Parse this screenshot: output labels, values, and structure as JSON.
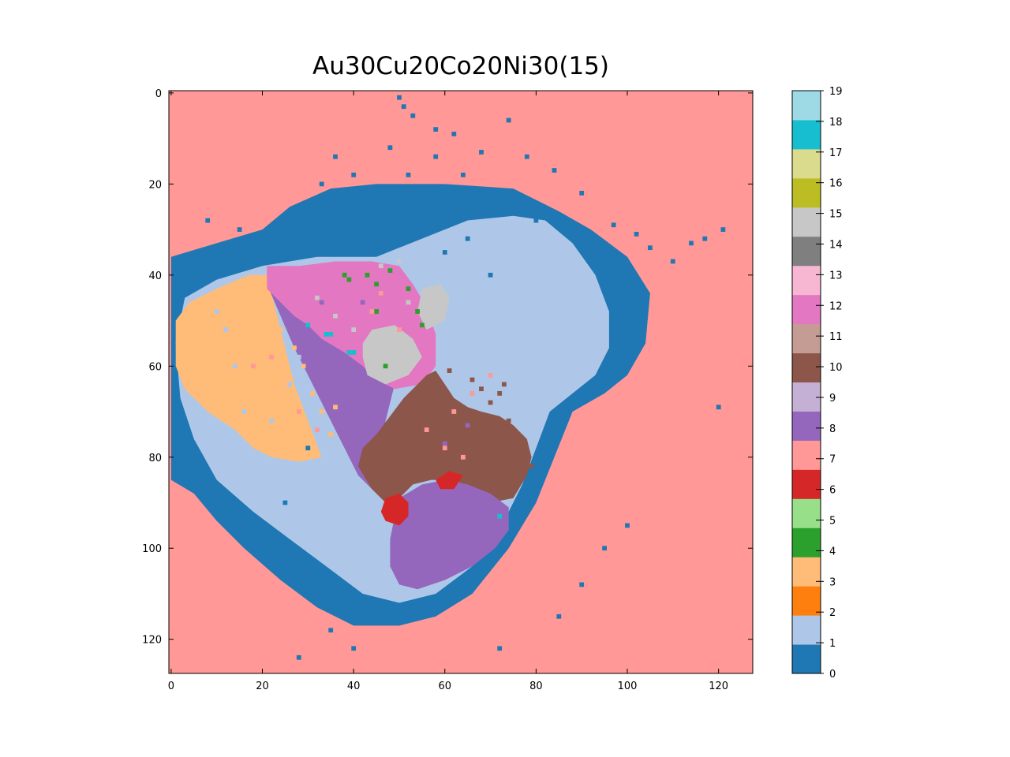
{
  "chart_data": {
    "type": "heatmap",
    "title": "Au30Cu20Co20Ni30(15)",
    "xlabel": "",
    "ylabel": "",
    "grid_size": 128,
    "xlim": [
      -0.5,
      127.5
    ],
    "ylim": [
      127.5,
      -0.5
    ],
    "x_ticks": [
      "0",
      "20",
      "40",
      "60",
      "80",
      "100",
      "120"
    ],
    "y_ticks": [
      "0",
      "20",
      "40",
      "60",
      "80",
      "100",
      "120"
    ],
    "colorbar": {
      "range": [
        0,
        19
      ],
      "ticks": [
        "0",
        "1",
        "2",
        "3",
        "4",
        "5",
        "6",
        "7",
        "8",
        "9",
        "10",
        "11",
        "12",
        "13",
        "14",
        "15",
        "16",
        "17",
        "18",
        "19"
      ],
      "colors": [
        "#1f77b4",
        "#aec7e8",
        "#ff7f0e",
        "#ffbb78",
        "#2ca02c",
        "#98df8a",
        "#d62728",
        "#ff9896",
        "#9467bd",
        "#c5b0d5",
        "#8c564b",
        "#c49c94",
        "#e377c2",
        "#f7b6d2",
        "#7f7f7f",
        "#c7c7c7",
        "#bcbd22",
        "#dbdb8d",
        "#17becf",
        "#9edae5"
      ]
    },
    "background_class": 7,
    "regions": [
      {
        "class": 0,
        "polygon": [
          [
            0,
            36
          ],
          [
            10,
            33
          ],
          [
            20,
            30
          ],
          [
            26,
            25
          ],
          [
            35,
            21
          ],
          [
            45,
            20
          ],
          [
            60,
            20
          ],
          [
            75,
            21
          ],
          [
            85,
            26
          ],
          [
            92,
            30
          ],
          [
            100,
            36
          ],
          [
            105,
            44
          ],
          [
            104,
            55
          ],
          [
            100,
            62
          ],
          [
            95,
            66
          ],
          [
            88,
            70
          ],
          [
            84,
            80
          ],
          [
            80,
            90
          ],
          [
            74,
            100
          ],
          [
            66,
            110
          ],
          [
            58,
            115
          ],
          [
            50,
            117
          ],
          [
            40,
            117
          ],
          [
            32,
            113
          ],
          [
            24,
            107
          ],
          [
            16,
            100
          ],
          [
            10,
            94
          ],
          [
            5,
            88
          ],
          [
            0,
            85
          ]
        ]
      },
      {
        "class": 1,
        "polygon": [
          [
            3,
            45
          ],
          [
            10,
            41
          ],
          [
            20,
            38
          ],
          [
            32,
            36
          ],
          [
            45,
            36
          ],
          [
            55,
            32
          ],
          [
            65,
            28
          ],
          [
            75,
            27
          ],
          [
            82,
            28
          ],
          [
            88,
            33
          ],
          [
            93,
            40
          ],
          [
            96,
            48
          ],
          [
            96,
            56
          ],
          [
            93,
            62
          ],
          [
            88,
            66
          ],
          [
            83,
            70
          ],
          [
            80,
            78
          ],
          [
            77,
            86
          ],
          [
            72,
            96
          ],
          [
            66,
            104
          ],
          [
            58,
            110
          ],
          [
            50,
            112
          ],
          [
            42,
            110
          ],
          [
            34,
            104
          ],
          [
            26,
            98
          ],
          [
            18,
            92
          ],
          [
            10,
            85
          ],
          [
            5,
            76
          ],
          [
            2,
            67
          ],
          [
            1,
            55
          ]
        ]
      },
      {
        "class": 3,
        "polygon": [
          [
            1,
            50
          ],
          [
            4,
            46
          ],
          [
            10,
            43
          ],
          [
            17,
            40
          ],
          [
            21,
            40
          ],
          [
            23,
            48
          ],
          [
            25,
            56
          ],
          [
            27,
            64
          ],
          [
            30,
            72
          ],
          [
            33,
            80
          ],
          [
            28,
            81
          ],
          [
            22,
            80
          ],
          [
            18,
            78
          ],
          [
            14,
            74
          ],
          [
            8,
            70
          ],
          [
            3,
            65
          ],
          [
            1,
            60
          ]
        ]
      },
      {
        "class": 8,
        "polygon": [
          [
            21,
            42
          ],
          [
            24,
            49
          ],
          [
            27,
            56
          ],
          [
            31,
            64
          ],
          [
            35,
            72
          ],
          [
            38,
            78
          ],
          [
            41,
            84
          ],
          [
            44,
            87
          ],
          [
            46,
            80
          ],
          [
            47,
            72
          ],
          [
            49,
            64
          ],
          [
            47,
            59
          ],
          [
            43,
            56
          ],
          [
            39,
            54
          ],
          [
            35,
            52
          ],
          [
            30,
            51
          ],
          [
            26,
            48
          ]
        ]
      },
      {
        "class": 12,
        "polygon": [
          [
            21,
            38
          ],
          [
            28,
            38
          ],
          [
            36,
            37
          ],
          [
            44,
            37
          ],
          [
            50,
            38
          ],
          [
            53,
            42
          ],
          [
            56,
            47
          ],
          [
            58,
            53
          ],
          [
            58,
            60
          ],
          [
            55,
            64
          ],
          [
            49,
            65
          ],
          [
            45,
            63
          ],
          [
            42,
            60
          ],
          [
            38,
            57
          ],
          [
            33,
            54
          ],
          [
            30,
            51
          ],
          [
            27,
            49
          ],
          [
            24,
            46
          ],
          [
            21,
            43
          ]
        ]
      },
      {
        "class": 15,
        "polygon": [
          [
            42,
            55
          ],
          [
            44,
            52
          ],
          [
            49,
            51
          ],
          [
            53,
            54
          ],
          [
            55,
            58
          ],
          [
            52,
            62
          ],
          [
            47,
            64
          ],
          [
            43,
            62
          ],
          [
            42,
            58
          ]
        ]
      },
      {
        "class": 15,
        "polygon": [
          [
            55,
            43
          ],
          [
            59,
            42
          ],
          [
            61,
            45
          ],
          [
            60,
            50
          ],
          [
            56,
            52
          ],
          [
            54,
            48
          ]
        ]
      },
      {
        "class": 10,
        "polygon": [
          [
            48,
            71
          ],
          [
            51,
            67
          ],
          [
            54,
            64
          ],
          [
            56,
            62
          ],
          [
            58,
            61
          ],
          [
            60,
            64
          ],
          [
            62,
            67
          ],
          [
            65,
            69
          ],
          [
            68,
            70
          ],
          [
            72,
            71
          ],
          [
            75,
            73
          ],
          [
            78,
            76
          ],
          [
            79,
            80
          ],
          [
            78,
            84
          ],
          [
            75,
            89
          ],
          [
            70,
            90
          ],
          [
            66,
            87
          ],
          [
            62,
            85
          ],
          [
            57,
            85
          ],
          [
            53,
            86
          ],
          [
            50,
            89
          ],
          [
            47,
            90
          ],
          [
            44,
            87
          ],
          [
            41,
            82
          ],
          [
            42,
            78
          ],
          [
            45,
            75
          ]
        ]
      },
      {
        "class": 8,
        "polygon": [
          [
            50,
            89
          ],
          [
            55,
            86
          ],
          [
            60,
            85
          ],
          [
            65,
            86
          ],
          [
            70,
            88
          ],
          [
            74,
            91
          ],
          [
            74,
            96
          ],
          [
            71,
            100
          ],
          [
            66,
            104
          ],
          [
            60,
            107
          ],
          [
            54,
            109
          ],
          [
            50,
            108
          ],
          [
            48,
            104
          ],
          [
            48,
            98
          ],
          [
            49,
            93
          ]
        ]
      },
      {
        "class": 6,
        "polygon": [
          [
            47,
            89
          ],
          [
            50,
            88
          ],
          [
            52,
            90
          ],
          [
            52,
            93
          ],
          [
            50,
            95
          ],
          [
            47,
            94
          ],
          [
            46,
            92
          ]
        ]
      },
      {
        "class": 6,
        "polygon": [
          [
            58,
            85
          ],
          [
            61,
            83
          ],
          [
            64,
            84
          ],
          [
            62,
            87
          ],
          [
            59,
            87
          ]
        ]
      }
    ],
    "speckles": [
      {
        "class": 4,
        "points": [
          [
            38,
            40
          ],
          [
            39,
            41
          ],
          [
            43,
            40
          ],
          [
            45,
            42
          ],
          [
            48,
            39
          ],
          [
            52,
            43
          ],
          [
            55,
            51
          ],
          [
            45,
            48
          ],
          [
            47,
            60
          ],
          [
            54,
            48
          ]
        ]
      },
      {
        "class": 18,
        "points": [
          [
            34,
            53
          ],
          [
            35,
            53
          ],
          [
            39,
            57
          ],
          [
            40,
            57
          ],
          [
            72,
            93
          ],
          [
            30,
            51
          ]
        ]
      },
      {
        "class": 8,
        "points": [
          [
            33,
            46
          ],
          [
            42,
            46
          ],
          [
            60,
            77
          ],
          [
            65,
            73
          ],
          [
            45,
            70
          ]
        ]
      },
      {
        "class": 0,
        "points": [
          [
            50,
            1
          ],
          [
            51,
            3
          ],
          [
            53,
            5
          ],
          [
            58,
            8
          ],
          [
            62,
            9
          ],
          [
            68,
            13
          ],
          [
            74,
            6
          ],
          [
            78,
            14
          ],
          [
            84,
            17
          ],
          [
            90,
            22
          ],
          [
            97,
            29
          ],
          [
            102,
            31
          ],
          [
            105,
            34
          ],
          [
            110,
            37
          ],
          [
            114,
            33
          ],
          [
            117,
            32
          ],
          [
            121,
            30
          ],
          [
            99,
            43
          ],
          [
            104,
            46
          ],
          [
            120,
            69
          ],
          [
            30,
            78
          ],
          [
            25,
            90
          ],
          [
            20,
            100
          ],
          [
            35,
            118
          ],
          [
            40,
            122
          ],
          [
            28,
            124
          ],
          [
            72,
            122
          ],
          [
            85,
            115
          ],
          [
            90,
            108
          ],
          [
            95,
            100
          ],
          [
            100,
            95
          ],
          [
            70,
            40
          ],
          [
            65,
            32
          ],
          [
            60,
            35
          ],
          [
            48,
            12
          ],
          [
            52,
            18
          ],
          [
            58,
            14
          ],
          [
            64,
            18
          ],
          [
            80,
            28
          ],
          [
            18,
            32
          ],
          [
            15,
            30
          ],
          [
            12,
            34
          ],
          [
            8,
            28
          ],
          [
            40,
            18
          ],
          [
            36,
            14
          ],
          [
            33,
            20
          ]
        ]
      },
      {
        "class": 1,
        "points": [
          [
            10,
            48
          ],
          [
            12,
            52
          ],
          [
            14,
            60
          ],
          [
            16,
            70
          ],
          [
            22,
            72
          ],
          [
            26,
            64
          ],
          [
            28,
            58
          ],
          [
            82,
            50
          ],
          [
            84,
            60
          ]
        ]
      },
      {
        "class": 3,
        "points": [
          [
            27,
            56
          ],
          [
            29,
            60
          ],
          [
            31,
            66
          ],
          [
            33,
            70
          ],
          [
            35,
            75
          ],
          [
            24,
            52
          ],
          [
            36,
            69
          ]
        ]
      },
      {
        "class": 7,
        "points": [
          [
            44,
            48
          ],
          [
            50,
            52
          ],
          [
            46,
            44
          ],
          [
            28,
            70
          ],
          [
            32,
            74
          ],
          [
            56,
            74
          ],
          [
            62,
            70
          ],
          [
            66,
            66
          ],
          [
            70,
            62
          ],
          [
            60,
            78
          ],
          [
            64,
            80
          ],
          [
            22,
            58
          ],
          [
            18,
            60
          ]
        ]
      },
      {
        "class": 10,
        "points": [
          [
            68,
            65
          ],
          [
            70,
            68
          ],
          [
            72,
            66
          ],
          [
            74,
            72
          ],
          [
            76,
            78
          ],
          [
            79,
            82
          ],
          [
            73,
            64
          ],
          [
            66,
            63
          ],
          [
            61,
            61
          ]
        ]
      },
      {
        "class": 12,
        "points": [
          [
            35,
            41
          ],
          [
            37,
            43
          ],
          [
            41,
            45
          ],
          [
            44,
            46
          ],
          [
            49,
            45
          ],
          [
            52,
            50
          ],
          [
            55,
            53
          ]
        ]
      },
      {
        "class": 15,
        "points": [
          [
            32,
            45
          ],
          [
            36,
            49
          ],
          [
            40,
            52
          ],
          [
            46,
            38
          ],
          [
            50,
            37
          ],
          [
            52,
            46
          ]
        ]
      }
    ]
  }
}
